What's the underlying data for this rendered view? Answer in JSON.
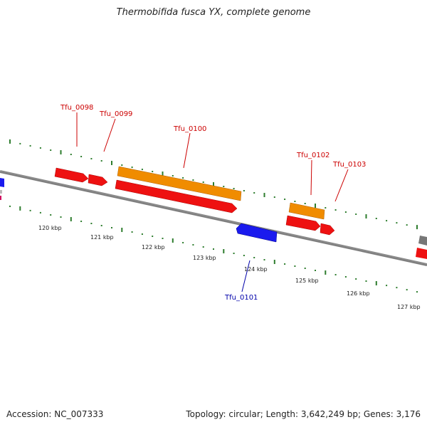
{
  "title": "Thermobifida fusca YX, complete genome",
  "footer": {
    "accession": "Accession: NC_007333",
    "summary": "Topology: circular; Length: 3,642,249 bp; Genes: 3,176"
  },
  "colors": {
    "forward_cds": "#ee1111",
    "reverse_cds": "#1a1aee",
    "gene": "#f08c00",
    "backbone": "#8a8a8a",
    "gc_ticks": "#2e7d2e",
    "forward_label": "#cc0000",
    "reverse_label": "#0000aa"
  },
  "scale_labels": [
    "120 kbp",
    "121 kbp",
    "122 kbp",
    "123 kbp",
    "124 kbp",
    "125 kbp",
    "126 kbp",
    "127 kbp"
  ],
  "gene_labels": [
    {
      "name": "Tfu_0098",
      "strand": "forward"
    },
    {
      "name": "Tfu_0099",
      "strand": "forward"
    },
    {
      "name": "Tfu_0100",
      "strand": "forward"
    },
    {
      "name": "Tfu_0102",
      "strand": "forward"
    },
    {
      "name": "Tfu_0103",
      "strand": "forward"
    },
    {
      "name": "Tfu_0101",
      "strand": "reverse"
    }
  ]
}
